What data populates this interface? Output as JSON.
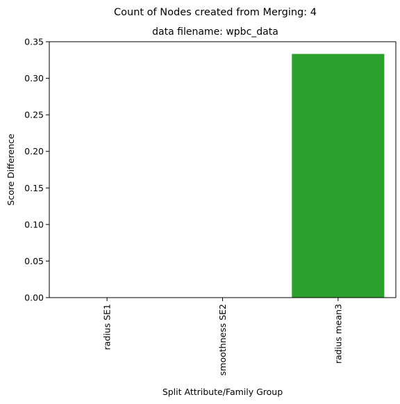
{
  "chart_data": {
    "type": "bar",
    "suptitle": "Count of Nodes created from Merging: 4",
    "title": "data filename: wpbc_data",
    "xlabel": "Split Attribute/Family Group",
    "ylabel": "Score Difference",
    "categories": [
      "radius SE1",
      "smoothness SE2",
      "radius mean3"
    ],
    "values": [
      0.0,
      0.0,
      0.3333
    ],
    "bar_colors": [
      "#1f77b4",
      "#ff7f0e",
      "#2ca02c"
    ],
    "ylim": [
      0,
      0.35
    ],
    "yticks": [
      0.0,
      0.05,
      0.1,
      0.15,
      0.2,
      0.25,
      0.3,
      0.35
    ],
    "ytick_labels": [
      "0.00",
      "0.05",
      "0.10",
      "0.15",
      "0.20",
      "0.25",
      "0.30",
      "0.35"
    ],
    "grid": false,
    "legend": "none"
  }
}
